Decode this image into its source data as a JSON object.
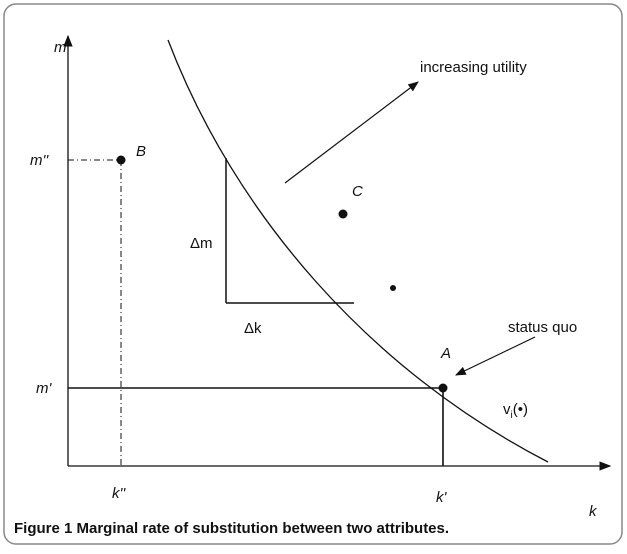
{
  "diagram": {
    "axes": {
      "y_label": "m",
      "x_label": "k"
    },
    "ticks": {
      "m_double_prime": "m''",
      "m_prime": "m'",
      "k_double_prime": "k''",
      "k_prime": "k'"
    },
    "points": {
      "A": "A",
      "B": "B",
      "C": "C"
    },
    "delta_m": "Δm",
    "delta_k": "Δk",
    "increasing_utility": "increasing utility",
    "status_quo": "status quo",
    "curve_label": {
      "base": "v",
      "subscript": "i",
      "suffix": "(•)"
    }
  },
  "caption": "Figure 1 Marginal rate of substitution between two attributes."
}
